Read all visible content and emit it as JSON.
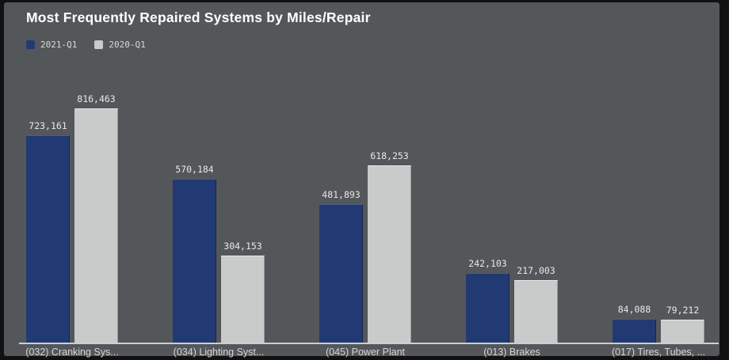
{
  "panel": {
    "title": "Most Frequently Repaired Systems by Miles/Repair",
    "background_color": "#54575a",
    "page_background_color": "#101113"
  },
  "legend": {
    "items": [
      {
        "label": "2021-Q1",
        "color": "#213a73"
      },
      {
        "label": "2020-Q1",
        "color": "#c9cbca"
      }
    ]
  },
  "chart_data": {
    "type": "bar",
    "title": "Most Frequently Repaired Systems by Miles/Repair",
    "categories": [
      "(032) Cranking Sys...",
      "(034) Lighting Syst...",
      "(045) Power Plant",
      "(013) Brakes",
      "(017) Tires, Tubes, ..."
    ],
    "series": [
      {
        "name": "2021-Q1",
        "color": "#213a73",
        "values": [
          723161,
          570184,
          481893,
          242103,
          84088
        ]
      },
      {
        "name": "2020-Q1",
        "color": "#c9cbca",
        "values": [
          816463,
          304153,
          618253,
          217003,
          79212
        ]
      }
    ],
    "xlabel": "",
    "ylabel": "",
    "ylim": [
      0,
      850000
    ],
    "grid": false,
    "legend_position": "top-left",
    "value_labels_shown": true,
    "axis_line_color": "#cdced0",
    "text_color": "#e6e7e8"
  }
}
